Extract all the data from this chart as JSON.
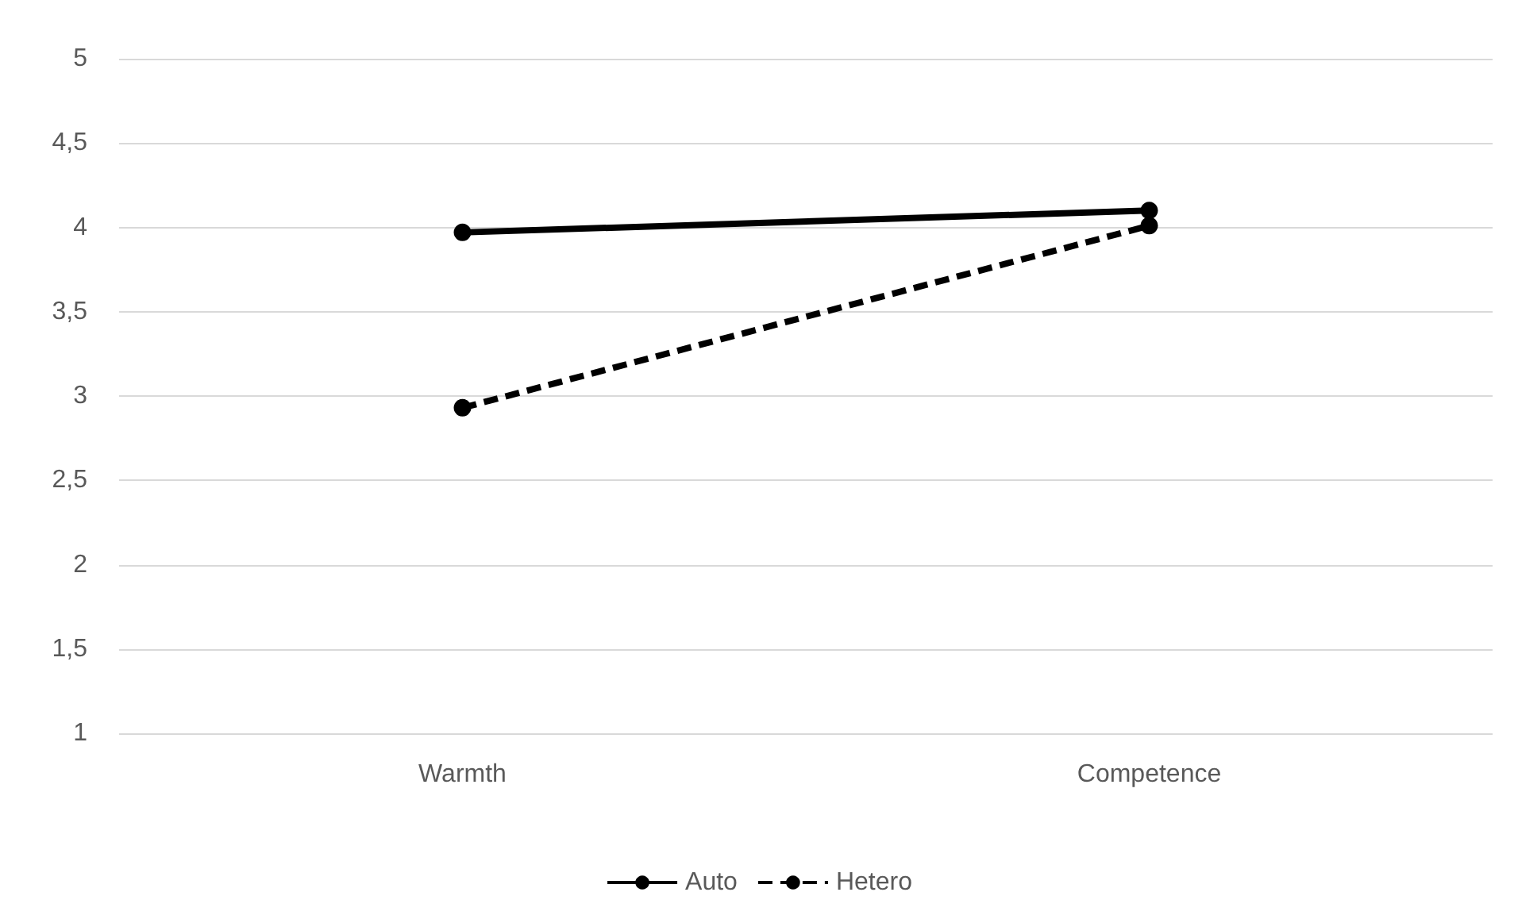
{
  "chart_data": {
    "type": "line",
    "categories": [
      "Warmth",
      "Competence"
    ],
    "series": [
      {
        "name": "Auto",
        "color": "#000000",
        "values": [
          3.97,
          4.1
        ],
        "line_style": "solid"
      },
      {
        "name": "Hetero",
        "color": "#000000",
        "values": [
          2.93,
          4.01
        ],
        "line_style": "dashed"
      }
    ],
    "ylim": [
      1,
      5
    ],
    "yticks": [
      1,
      {
        "value": 1.5,
        "label": "1,5"
      },
      2,
      {
        "value": 2.5,
        "label": "2,5"
      },
      3,
      {
        "value": 3.5,
        "label": "3,5"
      },
      4,
      {
        "value": 4.5,
        "label": "4,5"
      },
      5
    ],
    "grid": "y",
    "legend": "bottom",
    "marker": "circle"
  }
}
